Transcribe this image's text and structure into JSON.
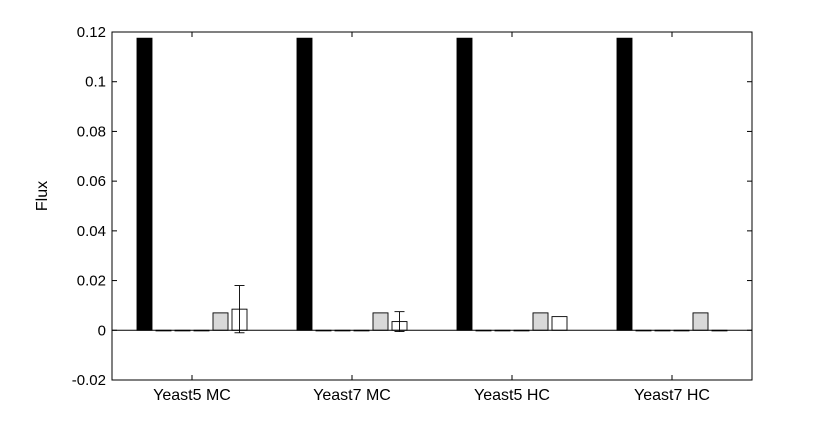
{
  "chart_data": {
    "type": "bar",
    "title": "",
    "xlabel": "",
    "ylabel": "Flux",
    "ylim": [
      -0.02,
      0.12
    ],
    "yticks": [
      "-0.02",
      "0",
      "0.02",
      "0.04",
      "0.06",
      "0.08",
      "0.1",
      "0.12"
    ],
    "ytick_values": [
      -0.02,
      0,
      0.02,
      0.04,
      0.06,
      0.08,
      0.1,
      0.12
    ],
    "categories": [
      "Yeast5 MC",
      "Yeast7 MC",
      "Yeast5 HC",
      "Yeast7 HC"
    ],
    "grid": false,
    "series": [
      {
        "color": "#000000",
        "values": [
          0.1175,
          0.1175,
          0.1175,
          0.1175
        ],
        "err": [
          0,
          0,
          0,
          0
        ]
      },
      {
        "color": "#000000",
        "values": [
          0,
          0,
          0,
          0
        ],
        "err": [
          0,
          0,
          0,
          0
        ]
      },
      {
        "color": "#000000",
        "values": [
          0,
          0,
          0,
          0
        ],
        "err": [
          0,
          0,
          0,
          0
        ]
      },
      {
        "color": "#000000",
        "values": [
          0,
          0,
          0,
          0
        ],
        "err": [
          0,
          0,
          0,
          0
        ]
      },
      {
        "color": "#d9d9d9",
        "values": [
          0.007,
          0.007,
          0.007,
          0.007
        ],
        "err": [
          0,
          0,
          0,
          0
        ]
      },
      {
        "color": "#ffffff",
        "values": [
          0.0085,
          0.0035,
          0.0055,
          0
        ],
        "err": [
          0.0095,
          0.004,
          0,
          0
        ]
      }
    ]
  }
}
